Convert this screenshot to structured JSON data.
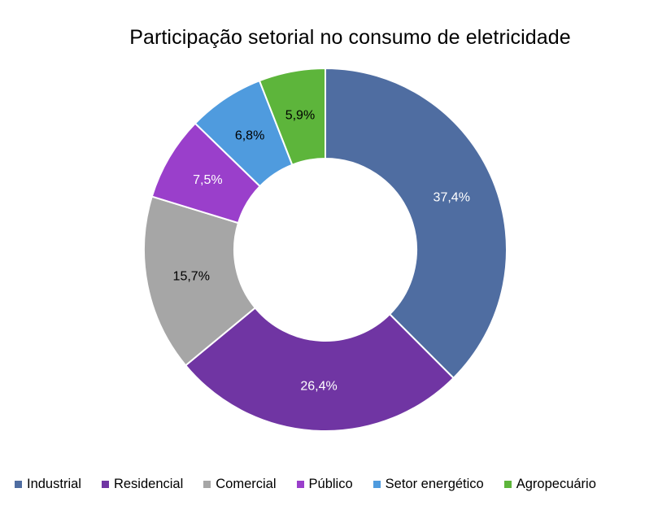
{
  "chart_data": {
    "type": "pie",
    "subtype": "doughnut",
    "title": "Participação setorial no consumo de eletricidade",
    "legend_position": "bottom",
    "slices": [
      {
        "name": "Industrial",
        "value": 37.4,
        "label": "37,4%",
        "color": "#4F6DA1",
        "label_color": "#ffffff"
      },
      {
        "name": "Residencial",
        "value": 26.4,
        "label": "26,4%",
        "color": "#7035A3",
        "label_color": "#ffffff"
      },
      {
        "name": "Comercial",
        "value": 15.7,
        "label": "15,7%",
        "color": "#A6A6A6",
        "label_color": "#000000"
      },
      {
        "name": "Público",
        "value": 7.5,
        "label": "7,5%",
        "color": "#9A3FCB",
        "label_color": "#ffffff"
      },
      {
        "name": "Setor energético",
        "value": 6.8,
        "label": "6,8%",
        "color": "#4F9BDE",
        "label_color": "#000000"
      },
      {
        "name": "Agropecuário",
        "value": 5.9,
        "label": "5,9%",
        "color": "#5DB53B",
        "label_color": "#000000"
      }
    ]
  }
}
